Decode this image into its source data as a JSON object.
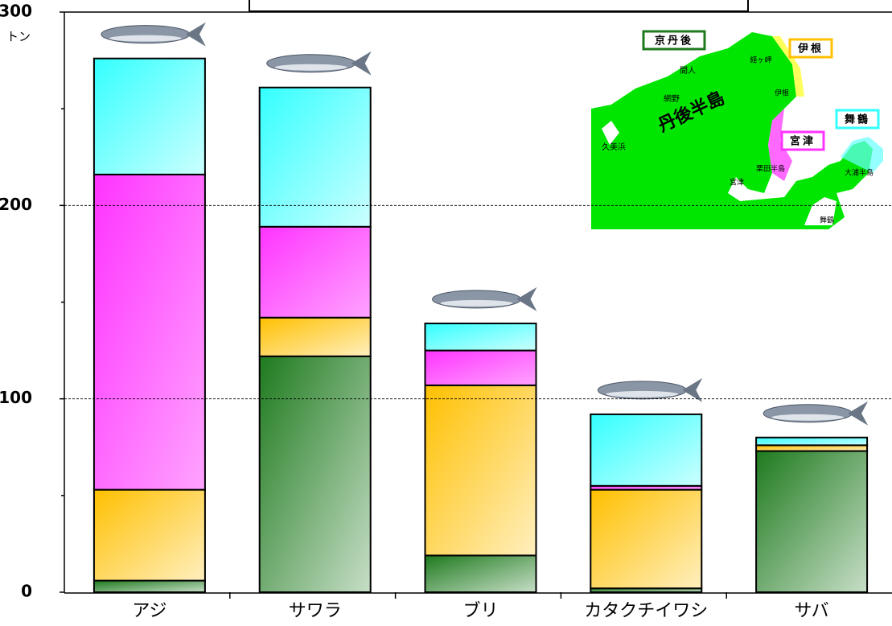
{
  "chart_data": {
    "type": "stacked_bar",
    "y_unit": "トン",
    "categories": [
      "アジ",
      "サワラ",
      "ブリ",
      "カタクチイワシ",
      "サバ"
    ],
    "series": [
      {
        "name": "京丹後",
        "color": "#1e7a1e",
        "values": [
          6,
          122,
          19,
          2,
          73
        ]
      },
      {
        "name": "伊根",
        "color": "#ffc000",
        "values": [
          47,
          20,
          88,
          51,
          3
        ]
      },
      {
        "name": "宮津",
        "color": "#ff33ff",
        "values": [
          163,
          47,
          18,
          2,
          0
        ]
      },
      {
        "name": "舞鶴",
        "color": "#33ffff",
        "values": [
          60,
          72,
          14,
          37,
          4
        ]
      }
    ],
    "ylim": [
      0,
      300
    ],
    "yticks": [
      0,
      100,
      200,
      300
    ],
    "minor_yticks": [
      50,
      150,
      250
    ],
    "grid": true,
    "map_labels": [
      "丹後半島",
      "間人",
      "経ヶ岬",
      "網野",
      "伊根",
      "久美浜",
      "宮津",
      "栗田半島",
      "大浦半島",
      "舞鶴"
    ]
  }
}
